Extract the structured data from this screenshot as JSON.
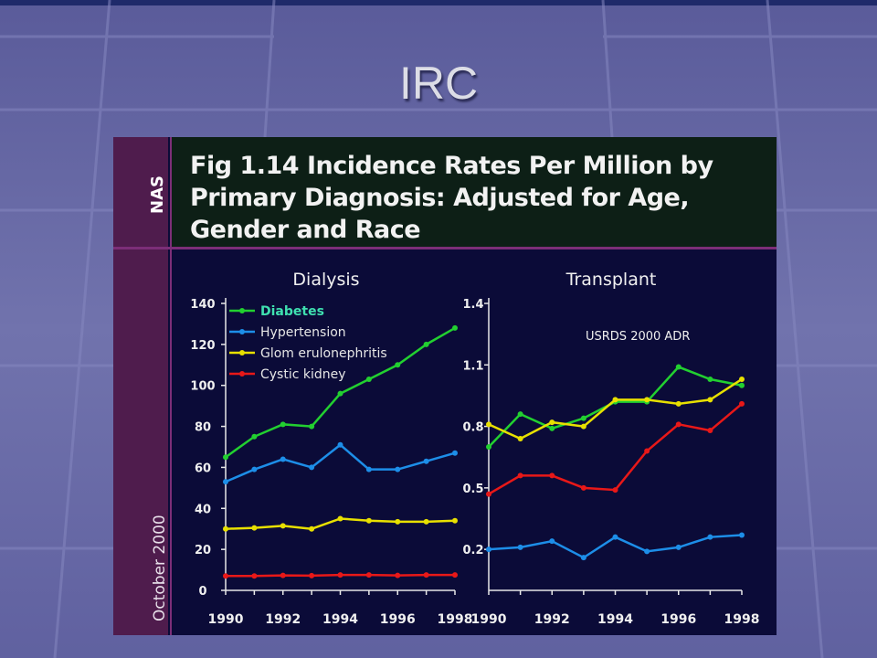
{
  "slide": {
    "title": "IRC"
  },
  "figure": {
    "title_lines": [
      "Fig 1.14 Incidence Rates Per Million by",
      "Primary Diagnosis: Adjusted for Age,",
      "Gender and Race"
    ],
    "side_label": "NAS",
    "date_label": "October 2000"
  },
  "colors": {
    "background": "#6d6ea8",
    "panel": "#0b0b38",
    "sidebar": "#4f1c4d",
    "header_box": "#0d1f16",
    "accent_rule": "#7c2e78",
    "axis": "#e8e8e8",
    "text": "#f0f0f0"
  },
  "chart_data": [
    {
      "type": "line",
      "title": "Dialysis",
      "xlabel": "",
      "ylabel": "",
      "x": [
        1990,
        1991,
        1992,
        1993,
        1994,
        1995,
        1996,
        1997,
        1998
      ],
      "x_ticks": [
        "1990",
        "1992",
        "1994",
        "1996",
        "1998"
      ],
      "xlim": [
        1990,
        1998
      ],
      "ylim": [
        0,
        140
      ],
      "y_ticks": [
        "0",
        "20",
        "40",
        "60",
        "80",
        "100",
        "120",
        "140"
      ],
      "grid": false,
      "legend": "top-left",
      "series": [
        {
          "name": "Diabetes",
          "color": "#22d030",
          "legend_text_color": "#3fe0b0",
          "values": [
            65,
            75,
            81,
            80,
            96,
            103,
            110,
            120,
            128
          ]
        },
        {
          "name": "Hypertension",
          "color": "#1d8ee8",
          "legend_text_color": "#e6e6e6",
          "values": [
            53,
            59,
            64,
            60,
            71,
            59,
            59,
            63,
            67
          ]
        },
        {
          "name": "Glom erulonephritis",
          "color": "#e8e000",
          "legend_text_color": "#e6e6e6",
          "values": [
            30,
            30.5,
            31.5,
            30,
            35,
            34,
            33.5,
            33.5,
            34
          ]
        },
        {
          "name": "Cystic kidney",
          "color": "#e81818",
          "legend_text_color": "#e6e6e6",
          "values": [
            7,
            7,
            7.3,
            7.2,
            7.5,
            7.5,
            7.3,
            7.5,
            7.5
          ]
        }
      ]
    },
    {
      "type": "line",
      "title": "Transplant",
      "xlabel": "",
      "ylabel": "",
      "annotation": "USRDS 2000 ADR",
      "x": [
        1990,
        1991,
        1992,
        1993,
        1994,
        1995,
        1996,
        1997,
        1998
      ],
      "x_ticks": [
        "1990",
        "1992",
        "1994",
        "1996",
        "1998"
      ],
      "xlim": [
        1990,
        1998
      ],
      "ylim": [
        0,
        1.4
      ],
      "y_ticks": [
        "0.2",
        "0.5",
        "0.8",
        "1.1",
        "1.4"
      ],
      "grid": false,
      "series": [
        {
          "name": "Diabetes",
          "color": "#22d030",
          "values": [
            0.7,
            0.86,
            0.79,
            0.84,
            0.92,
            0.92,
            1.09,
            1.03,
            1.0
          ]
        },
        {
          "name": "Hypertension",
          "color": "#1d8ee8",
          "values": [
            0.2,
            0.21,
            0.24,
            0.16,
            0.26,
            0.19,
            0.21,
            0.26,
            0.27
          ]
        },
        {
          "name": "Glom erulonephritis",
          "color": "#e8e000",
          "values": [
            0.81,
            0.74,
            0.82,
            0.8,
            0.93,
            0.93,
            0.91,
            0.93,
            1.03
          ]
        },
        {
          "name": "Cystic kidney",
          "color": "#e81818",
          "values": [
            0.47,
            0.56,
            0.56,
            0.5,
            0.49,
            0.68,
            0.81,
            0.78,
            0.91
          ]
        }
      ]
    }
  ]
}
